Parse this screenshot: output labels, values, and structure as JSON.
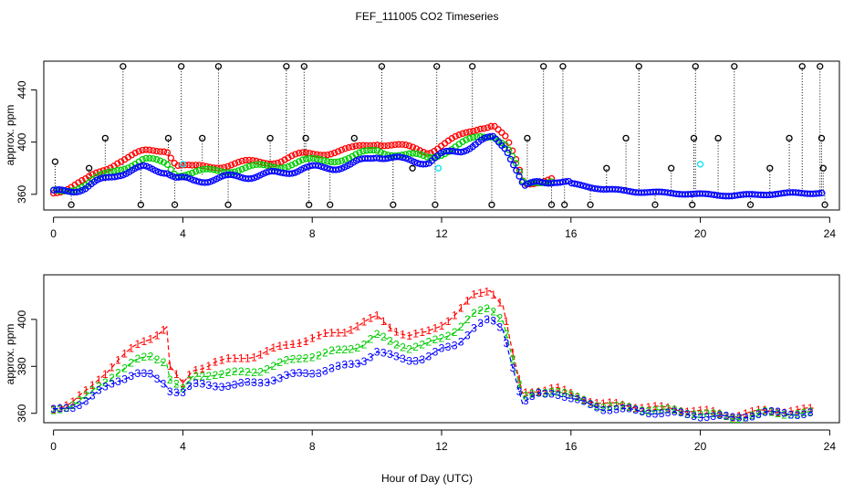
{
  "title": "FEF_111005  CO2 Timeseries",
  "xlabel": "Hour of Day (UTC)",
  "colors": {
    "black": "#000000",
    "red": "#ff0000",
    "green": "#00cc00",
    "blue": "#0000ff",
    "cyan": "#00e5ee"
  },
  "chart_data": [
    {
      "type": "scatter",
      "panel": "top",
      "ylabel": "approx. ppm",
      "xlim": [
        -0.3,
        24.3
      ],
      "ylim": [
        348,
        462
      ],
      "xticks": [
        0,
        4,
        8,
        12,
        16,
        20,
        24
      ],
      "yticks": [
        360,
        400,
        440
      ],
      "series_points": [
        {
          "name": "red",
          "anchors": [
            [
              0,
              362
            ],
            [
              1,
              370
            ],
            [
              2,
              386
            ],
            [
              2.8,
              392
            ],
            [
              3.5,
              395
            ],
            [
              3.8,
              383
            ],
            [
              4.3,
              380
            ],
            [
              5,
              382
            ],
            [
              6,
              384
            ],
            [
              7,
              386
            ],
            [
              7.7,
              390
            ],
            [
              8.3,
              392
            ],
            [
              9.2,
              394
            ],
            [
              10,
              400
            ],
            [
              10.8,
              396
            ],
            [
              11.6,
              393
            ],
            [
              12,
              398
            ],
            [
              12.6,
              404
            ],
            [
              13.2,
              412
            ],
            [
              13.6,
              414
            ],
            [
              14.0,
              402
            ],
            [
              14.3,
              385
            ],
            [
              14.55,
              368
            ],
            [
              15.0,
              371
            ],
            [
              15.5,
              372
            ]
          ]
        },
        {
          "name": "green",
          "anchors": [
            [
              0,
              362
            ],
            [
              1,
              367
            ],
            [
              2,
              380
            ],
            [
              2.8,
              386
            ],
            [
              3.5,
              384
            ],
            [
              3.8,
              376
            ],
            [
              4.3,
              376
            ],
            [
              5,
              378
            ],
            [
              6,
              380
            ],
            [
              7,
              382
            ],
            [
              7.7,
              385
            ],
            [
              8.3,
              386
            ],
            [
              9.2,
              388
            ],
            [
              10,
              394
            ],
            [
              10.8,
              390
            ],
            [
              11.6,
              388
            ],
            [
              12,
              392
            ],
            [
              12.6,
              398
            ],
            [
              13.2,
              404
            ],
            [
              13.6,
              406
            ],
            [
              14.0,
              398
            ],
            [
              14.3,
              382
            ],
            [
              14.55,
              366
            ],
            [
              15.0,
              370
            ],
            [
              15.5,
              372
            ]
          ]
        },
        {
          "name": "blue",
          "anchors": [
            [
              0,
              361
            ],
            [
              1,
              365
            ],
            [
              2,
              376
            ],
            [
              2.8,
              380
            ],
            [
              3.5,
              378
            ],
            [
              3.8,
              372
            ],
            [
              4.3,
              370
            ],
            [
              5,
              372
            ],
            [
              6,
              374
            ],
            [
              7,
              376
            ],
            [
              7.7,
              380
            ],
            [
              8.3,
              380
            ],
            [
              9.2,
              382
            ],
            [
              10,
              390
            ],
            [
              10.8,
              386
            ],
            [
              11.6,
              385
            ],
            [
              12,
              390
            ],
            [
              12.6,
              394
            ],
            [
              13.2,
              400
            ],
            [
              13.6,
              403
            ],
            [
              14.0,
              396
            ],
            [
              14.3,
              380
            ],
            [
              14.55,
              365
            ],
            [
              15.0,
              369
            ],
            [
              15.5,
              371
            ],
            [
              16,
              368
            ],
            [
              17,
              364
            ],
            [
              18,
              362
            ],
            [
              19,
              361
            ],
            [
              20,
              360
            ],
            [
              21,
              359
            ],
            [
              22,
              360
            ],
            [
              23,
              361
            ],
            [
              23.8,
              361
            ]
          ]
        },
        {
          "name": "cyan",
          "points": [
            [
              4.0,
              383
            ],
            [
              11.9,
              380
            ],
            [
              20.0,
              383
            ]
          ]
        }
      ],
      "spikes": [
        {
          "x": 0.05,
          "base": 362,
          "top": 385
        },
        {
          "x": 0.55,
          "base": 363,
          "top": 352
        },
        {
          "x": 1.1,
          "base": 366,
          "top": 380
        },
        {
          "x": 1.6,
          "base": 370,
          "top": 403
        },
        {
          "x": 2.15,
          "base": 380,
          "top": 458
        },
        {
          "x": 2.7,
          "base": 383,
          "top": 352
        },
        {
          "x": 3.55,
          "base": 385,
          "top": 403
        },
        {
          "x": 3.75,
          "base": 380,
          "top": 352
        },
        {
          "x": 3.95,
          "base": 378,
          "top": 458
        },
        {
          "x": 4.6,
          "base": 375,
          "top": 403
        },
        {
          "x": 5.1,
          "base": 377,
          "top": 458
        },
        {
          "x": 5.4,
          "base": 377,
          "top": 352
        },
        {
          "x": 6.7,
          "base": 380,
          "top": 403
        },
        {
          "x": 7.2,
          "base": 385,
          "top": 458
        },
        {
          "x": 7.75,
          "base": 388,
          "top": 458
        },
        {
          "x": 7.8,
          "base": 388,
          "top": 403
        },
        {
          "x": 7.9,
          "base": 385,
          "top": 352
        },
        {
          "x": 8.55,
          "base": 386,
          "top": 352
        },
        {
          "x": 9.3,
          "base": 390,
          "top": 403
        },
        {
          "x": 10.15,
          "base": 392,
          "top": 458
        },
        {
          "x": 10.5,
          "base": 390,
          "top": 352
        },
        {
          "x": 11.1,
          "base": 386,
          "top": 380
        },
        {
          "x": 11.85,
          "base": 388,
          "top": 458
        },
        {
          "x": 11.8,
          "base": 388,
          "top": 352
        },
        {
          "x": 12.95,
          "base": 395,
          "top": 458
        },
        {
          "x": 13.55,
          "base": 400,
          "top": 352
        },
        {
          "x": 14.65,
          "base": 370,
          "top": 403
        },
        {
          "x": 15.15,
          "base": 372,
          "top": 458
        },
        {
          "x": 15.4,
          "base": 372,
          "top": 352
        },
        {
          "x": 15.75,
          "base": 370,
          "top": 458
        },
        {
          "x": 15.8,
          "base": 370,
          "top": 352
        },
        {
          "x": 16.6,
          "base": 365,
          "top": 352
        },
        {
          "x": 17.1,
          "base": 364,
          "top": 380
        },
        {
          "x": 17.7,
          "base": 363,
          "top": 403
        },
        {
          "x": 18.1,
          "base": 362,
          "top": 458
        },
        {
          "x": 18.6,
          "base": 361,
          "top": 352
        },
        {
          "x": 19.1,
          "base": 361,
          "top": 380
        },
        {
          "x": 19.85,
          "base": 360,
          "top": 458
        },
        {
          "x": 19.8,
          "base": 360,
          "top": 403
        },
        {
          "x": 19.75,
          "base": 360,
          "top": 352
        },
        {
          "x": 20.55,
          "base": 359,
          "top": 403
        },
        {
          "x": 21.05,
          "base": 359,
          "top": 458
        },
        {
          "x": 21.55,
          "base": 359,
          "top": 352
        },
        {
          "x": 22.15,
          "base": 360,
          "top": 380
        },
        {
          "x": 22.75,
          "base": 360,
          "top": 403
        },
        {
          "x": 23.15,
          "base": 360,
          "top": 458
        },
        {
          "x": 23.7,
          "base": 361,
          "top": 458
        },
        {
          "x": 23.75,
          "base": 361,
          "top": 403
        },
        {
          "x": 23.8,
          "base": 361,
          "top": 380
        },
        {
          "x": 23.85,
          "base": 361,
          "top": 352
        }
      ]
    },
    {
      "type": "line",
      "panel": "bottom",
      "ylabel": "approx. ppm",
      "xlim": [
        -0.3,
        24.3
      ],
      "ylim": [
        356,
        419
      ],
      "xticks": [
        0,
        4,
        8,
        12,
        16,
        20,
        24
      ],
      "yticks": [
        360,
        380,
        400
      ],
      "series": [
        {
          "name": "1",
          "color": "red",
          "anchors": [
            [
              0,
              362
            ],
            [
              0.6,
              365
            ],
            [
              1.1,
              370
            ],
            [
              1.5,
              376
            ],
            [
              2.0,
              383
            ],
            [
              2.5,
              388
            ],
            [
              3.0,
              392
            ],
            [
              3.5,
              397
            ],
            [
              3.6,
              380
            ],
            [
              4.0,
              372
            ],
            [
              4.3,
              378
            ],
            [
              5.0,
              382
            ],
            [
              5.7,
              383
            ],
            [
              6.3,
              385
            ],
            [
              7.0,
              388
            ],
            [
              7.7,
              391
            ],
            [
              8.3,
              393
            ],
            [
              9.0,
              395
            ],
            [
              9.5,
              398
            ],
            [
              10.0,
              401
            ],
            [
              10.5,
              396
            ],
            [
              11.0,
              393
            ],
            [
              11.5,
              394
            ],
            [
              12.0,
              398
            ],
            [
              12.5,
              403
            ],
            [
              13.0,
              410
            ],
            [
              13.5,
              413
            ],
            [
              13.9,
              406
            ],
            [
              14.2,
              385
            ],
            [
              14.5,
              368
            ],
            [
              15.0,
              370
            ],
            [
              15.5,
              371
            ],
            [
              16.0,
              368
            ],
            [
              17.0,
              364
            ],
            [
              18.0,
              363
            ],
            [
              19.0,
              362
            ],
            [
              20.0,
              361
            ],
            [
              21.0,
              359
            ],
            [
              22.0,
              361
            ],
            [
              23.0,
              361
            ],
            [
              23.6,
              362
            ]
          ]
        },
        {
          "name": "2",
          "color": "green",
          "anchors": [
            [
              0,
              361
            ],
            [
              0.6,
              364
            ],
            [
              1.1,
              368
            ],
            [
              1.5,
              372
            ],
            [
              2.0,
              378
            ],
            [
              2.5,
              382
            ],
            [
              3.0,
              384
            ],
            [
              3.5,
              382
            ],
            [
              3.6,
              375
            ],
            [
              4.0,
              370
            ],
            [
              4.3,
              375
            ],
            [
              5.0,
              377
            ],
            [
              5.7,
              377
            ],
            [
              6.3,
              378
            ],
            [
              7.0,
              381
            ],
            [
              7.7,
              384
            ],
            [
              8.3,
              385
            ],
            [
              9.0,
              387
            ],
            [
              9.5,
              389
            ],
            [
              10.0,
              393
            ],
            [
              10.5,
              390
            ],
            [
              11.0,
              388
            ],
            [
              11.5,
              389
            ],
            [
              12.0,
              392
            ],
            [
              12.5,
              396
            ],
            [
              13.0,
              402
            ],
            [
              13.5,
              405
            ],
            [
              13.9,
              400
            ],
            [
              14.2,
              383
            ],
            [
              14.5,
              366
            ],
            [
              15.0,
              369
            ],
            [
              15.5,
              370
            ],
            [
              16.0,
              367
            ],
            [
              17.0,
              363
            ],
            [
              18.0,
              362
            ],
            [
              19.0,
              361
            ],
            [
              20.0,
              360
            ],
            [
              21.0,
              358
            ],
            [
              22.0,
              360
            ],
            [
              23.0,
              360
            ],
            [
              23.6,
              360
            ]
          ]
        },
        {
          "name": "3",
          "color": "blue",
          "anchors": [
            [
              0,
              361
            ],
            [
              0.6,
              363
            ],
            [
              1.1,
              366
            ],
            [
              1.5,
              370
            ],
            [
              2.0,
              374
            ],
            [
              2.5,
              377
            ],
            [
              3.0,
              376
            ],
            [
              3.5,
              372
            ],
            [
              3.6,
              370
            ],
            [
              4.0,
              369
            ],
            [
              4.3,
              372
            ],
            [
              5.0,
              372
            ],
            [
              5.7,
              372
            ],
            [
              6.3,
              373
            ],
            [
              7.0,
              375
            ],
            [
              7.7,
              377
            ],
            [
              8.3,
              378
            ],
            [
              9.0,
              380
            ],
            [
              9.5,
              382
            ],
            [
              10.0,
              386
            ],
            [
              10.5,
              384
            ],
            [
              11.0,
              383
            ],
            [
              11.5,
              383
            ],
            [
              12.0,
              387
            ],
            [
              12.5,
              390
            ],
            [
              13.0,
              396
            ],
            [
              13.5,
              400
            ],
            [
              13.9,
              396
            ],
            [
              14.2,
              380
            ],
            [
              14.5,
              364
            ],
            [
              15.0,
              368
            ],
            [
              15.5,
              369
            ],
            [
              16.0,
              366
            ],
            [
              17.0,
              362
            ],
            [
              18.0,
              361
            ],
            [
              19.0,
              360
            ],
            [
              20.0,
              359
            ],
            [
              21.0,
              358
            ],
            [
              22.0,
              360
            ],
            [
              23.0,
              360
            ],
            [
              23.6,
              360
            ]
          ]
        }
      ]
    }
  ]
}
